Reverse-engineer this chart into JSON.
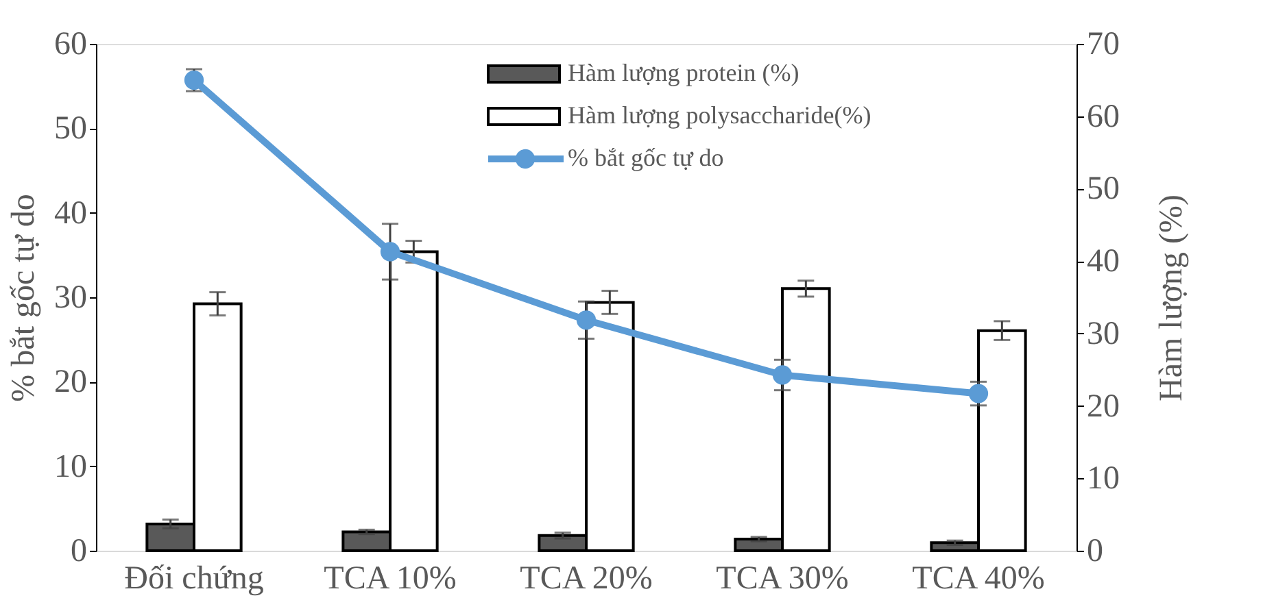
{
  "chart_data": {
    "type": "bar",
    "ylabel": "% bắt gốc tự do",
    "y2label": "Hàm lượng (%)",
    "categories": [
      "Đối chứng",
      "TCA 10%",
      "TCA 20%",
      "TCA 30%",
      "TCA 40%"
    ],
    "series": [
      {
        "name": "Hàm lượng protein (%)",
        "axis": "y2",
        "color": "#595959",
        "values": [
          3.7,
          2.6,
          2.1,
          1.6,
          1.1
        ],
        "errors": [
          0.6,
          0.3,
          0.4,
          0.3,
          0.3
        ]
      },
      {
        "name": "Hàm lượng polysaccharide(%)",
        "axis": "y2",
        "color": "#ffffff",
        "values": [
          34.1,
          41.3,
          34.3,
          36.2,
          30.4
        ],
        "errors": [
          1.6,
          1.5,
          1.6,
          1.1,
          1.3
        ]
      },
      {
        "name": "% bắt gốc tự do",
        "type": "line",
        "axis": "y",
        "color": "#5b9bd5",
        "marker": "circle",
        "line_style": "solid",
        "values": [
          55.7,
          35.4,
          27.3,
          20.8,
          18.6
        ],
        "errors": [
          1.3,
          3.3,
          2.2,
          1.8,
          1.4
        ]
      }
    ],
    "ylim": [
      0,
      60
    ],
    "yticks": [
      0,
      10,
      20,
      30,
      40,
      50,
      60
    ],
    "y2lim": [
      0,
      70
    ],
    "y2ticks": [
      0,
      10,
      20,
      30,
      40,
      50,
      60,
      70
    ],
    "legend": "top right",
    "grid": false
  }
}
